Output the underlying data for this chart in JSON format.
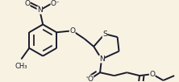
{
  "bg_color": "#f7f2e2",
  "line_color": "#1a1a2e",
  "line_width": 1.4,
  "font_size": 6.5,
  "fig_width": 2.22,
  "fig_height": 1.02,
  "dpi": 100,
  "xlim": [
    0.0,
    1.0
  ],
  "ylim": [
    0.0,
    1.0
  ]
}
